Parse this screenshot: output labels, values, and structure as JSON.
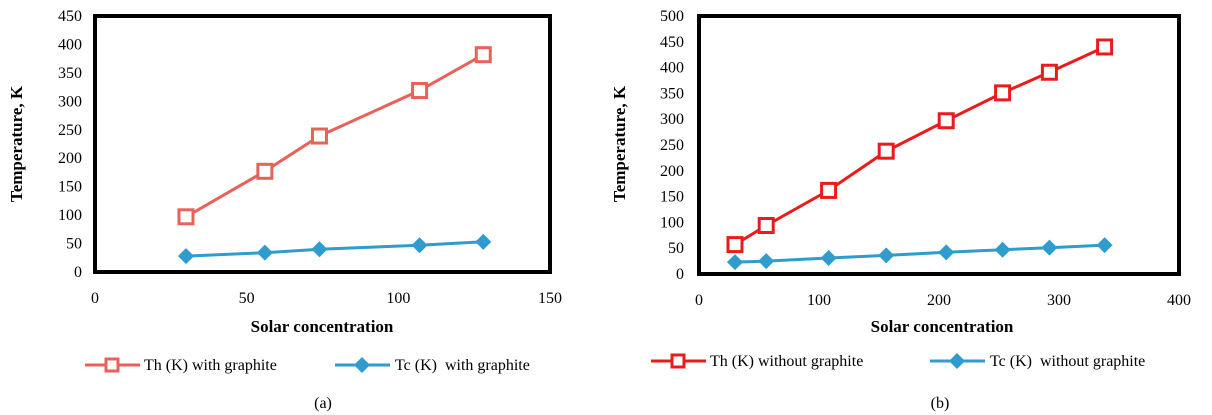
{
  "chart_data": [
    {
      "type": "line",
      "xlabel": "Solar concentration",
      "ylabel": "Temperature, K",
      "xlim": [
        0,
        150
      ],
      "ylim": [
        0,
        450
      ],
      "xticks": [
        "0",
        "50",
        "100",
        "150"
      ],
      "yticks": [
        "0",
        "50",
        "100",
        "150",
        "200",
        "250",
        "300",
        "350",
        "400",
        "450"
      ],
      "grid": false,
      "legend_position": "bottom",
      "caption": "(a)",
      "series": [
        {
          "name": "Th (K) with graphite",
          "color": "#e8625a",
          "marker": "square-open",
          "x": [
            30,
            56,
            74,
            107,
            128
          ],
          "y": [
            97,
            177,
            239,
            319,
            382
          ]
        },
        {
          "name": "Tc (K)  with graphite",
          "color": "#2e9ccc",
          "marker": "diamond-filled",
          "x": [
            30,
            56,
            74,
            107,
            128
          ],
          "y": [
            28,
            34,
            40,
            47,
            53
          ]
        }
      ]
    },
    {
      "type": "line",
      "xlabel": "Solar concentration",
      "ylabel": "Temperature, K",
      "xlim": [
        0,
        400
      ],
      "ylim": [
        0,
        500
      ],
      "xticks": [
        "0",
        "100",
        "200",
        "300",
        "400"
      ],
      "yticks": [
        "0",
        "50",
        "100",
        "150",
        "200",
        "250",
        "300",
        "350",
        "400",
        "450",
        "500"
      ],
      "grid": false,
      "legend_position": "bottom",
      "caption": "(b)",
      "series": [
        {
          "name": "Th (K) without graphite",
          "color": "#e81c1c",
          "marker": "square-open",
          "x": [
            30,
            56,
            108,
            156,
            206,
            253,
            292,
            338
          ],
          "y": [
            57,
            94,
            162,
            238,
            297,
            351,
            391,
            440
          ]
        },
        {
          "name": "Tc (K)  without graphite",
          "color": "#2e9ccc",
          "marker": "diamond-filled",
          "x": [
            30,
            56,
            108,
            156,
            206,
            253,
            292,
            338
          ],
          "y": [
            23,
            25,
            31,
            36,
            42,
            47,
            51,
            56
          ]
        }
      ]
    }
  ]
}
